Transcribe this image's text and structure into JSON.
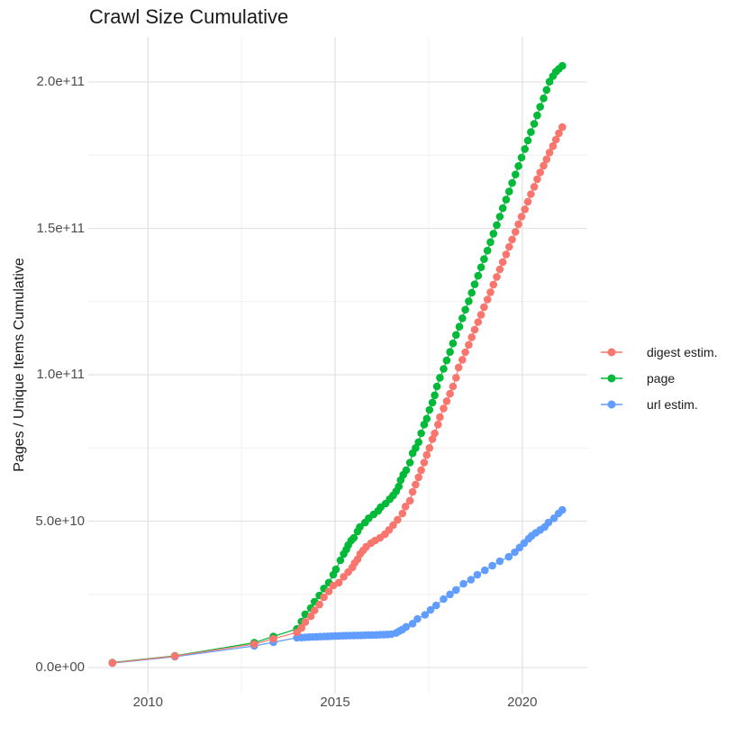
{
  "title": "Crawl Size Cumulative",
  "y_axis_title": "Pages / Unique Items Cumulative",
  "legend": {
    "position": "right",
    "items": [
      {
        "label": "digest estim.",
        "color": "#F8766D",
        "series": "digest estim."
      },
      {
        "label": "page",
        "color": "#00BA38",
        "series": "page"
      },
      {
        "label": "url estim.",
        "color": "#619CFF",
        "series": "url estim."
      }
    ]
  },
  "axes": {
    "x": {
      "ticks": [
        {
          "label": "2010",
          "value": 2010
        },
        {
          "label": "2015",
          "value": 2015
        },
        {
          "label": "2020",
          "value": 2020
        }
      ],
      "minor": [
        2012.5,
        2017.5
      ]
    },
    "y": {
      "ticks": [
        {
          "label": "0.0e+00",
          "value": 0
        },
        {
          "label": "5.0e+10",
          "value": 50
        },
        {
          "label": "1.0e+11",
          "value": 100
        },
        {
          "label": "1.5e+11",
          "value": 150
        },
        {
          "label": "2.0e+11",
          "value": 200
        }
      ],
      "minor": [
        25,
        75,
        125,
        175
      ]
    }
  },
  "colors": {
    "grid_major": "#E3E3E3",
    "grid_minor": "#EFEFEF",
    "background": "#FFFFFF"
  },
  "chart_data": {
    "type": "scatter",
    "title": "Crawl Size Cumulative",
    "xlabel": "",
    "ylabel": "Pages / Unique Items Cumulative",
    "x_unit": "year (decimal)",
    "y_unit": "items, billions (1e9)",
    "xlim": [
      2008.4,
      2021.7
    ],
    "ylim": [
      0,
      215
    ],
    "grid": true,
    "legend_position": "right",
    "marker_radius_px": 4.3,
    "series": [
      {
        "name": "digest estim.",
        "color": "#F8766D",
        "points": [
          [
            2009.05,
            1.6
          ],
          [
            2010.72,
            3.9
          ],
          [
            2012.84,
            8.0
          ],
          [
            2013.35,
            9.8
          ],
          [
            2013.98,
            12.0
          ],
          [
            2014.1,
            13.5
          ],
          [
            2014.2,
            15.5
          ],
          [
            2014.35,
            17.5
          ],
          [
            2014.45,
            19.5
          ],
          [
            2014.58,
            21.5
          ],
          [
            2014.7,
            24.0
          ],
          [
            2014.83,
            26.0
          ],
          [
            2014.95,
            28.0
          ],
          [
            2015.1,
            29.0
          ],
          [
            2015.23,
            31.0
          ],
          [
            2015.35,
            32.6
          ],
          [
            2015.46,
            34.2
          ],
          [
            2015.52,
            35.7
          ],
          [
            2015.6,
            37.0
          ],
          [
            2015.67,
            38.8
          ],
          [
            2015.75,
            40.0
          ],
          [
            2015.83,
            41.2
          ],
          [
            2015.96,
            42.5
          ],
          [
            2016.07,
            43.4
          ],
          [
            2016.2,
            44.3
          ],
          [
            2016.33,
            45.5
          ],
          [
            2016.44,
            47.0
          ],
          [
            2016.55,
            48.6
          ],
          [
            2016.67,
            50.5
          ],
          [
            2016.8,
            52.6
          ],
          [
            2016.88,
            55.0
          ],
          [
            2017.0,
            57.0
          ],
          [
            2017.07,
            60.0
          ],
          [
            2017.15,
            62.5
          ],
          [
            2017.23,
            65.0
          ],
          [
            2017.3,
            67.4
          ],
          [
            2017.38,
            70.0
          ],
          [
            2017.45,
            72.6
          ],
          [
            2017.52,
            75.0
          ],
          [
            2017.6,
            78.0
          ],
          [
            2017.66,
            80.0
          ],
          [
            2017.75,
            83.0
          ],
          [
            2017.8,
            85.5
          ],
          [
            2017.9,
            88.5
          ],
          [
            2017.98,
            91.0
          ],
          [
            2018.07,
            93.5
          ],
          [
            2018.15,
            96.0
          ],
          [
            2018.23,
            99.0
          ],
          [
            2018.3,
            102.5
          ],
          [
            2018.4,
            105.1
          ],
          [
            2018.48,
            107.7
          ],
          [
            2018.57,
            110.2
          ],
          [
            2018.65,
            112.8
          ],
          [
            2018.73,
            115.4
          ],
          [
            2018.82,
            118.0
          ],
          [
            2018.9,
            120.5
          ],
          [
            2018.98,
            123.1
          ],
          [
            2019.07,
            125.7
          ],
          [
            2019.15,
            128.2
          ],
          [
            2019.23,
            130.8
          ],
          [
            2019.32,
            133.4
          ],
          [
            2019.4,
            136.0
          ],
          [
            2019.48,
            138.5
          ],
          [
            2019.57,
            141.1
          ],
          [
            2019.65,
            143.7
          ],
          [
            2019.73,
            146.2
          ],
          [
            2019.82,
            148.8
          ],
          [
            2019.9,
            151.4
          ],
          [
            2019.98,
            154.0
          ],
          [
            2020.07,
            156.5
          ],
          [
            2020.15,
            159.1
          ],
          [
            2020.23,
            161.7
          ],
          [
            2020.32,
            164.2
          ],
          [
            2020.4,
            166.8
          ],
          [
            2020.48,
            169.1
          ],
          [
            2020.57,
            171.4
          ],
          [
            2020.65,
            173.6
          ],
          [
            2020.73,
            175.9
          ],
          [
            2020.82,
            178.1
          ],
          [
            2020.9,
            180.3
          ],
          [
            2020.98,
            182.5
          ],
          [
            2021.07,
            184.6
          ]
        ]
      },
      {
        "name": "page",
        "color": "#00BA38",
        "points": [
          [
            2009.05,
            1.7
          ],
          [
            2010.72,
            4.0
          ],
          [
            2012.84,
            8.5
          ],
          [
            2013.35,
            10.6
          ],
          [
            2013.98,
            13.2
          ],
          [
            2014.1,
            15.7
          ],
          [
            2014.2,
            18.2
          ],
          [
            2014.35,
            20.3
          ],
          [
            2014.45,
            22.5
          ],
          [
            2014.58,
            24.6
          ],
          [
            2014.7,
            27.0
          ],
          [
            2014.83,
            29.0
          ],
          [
            2014.95,
            31.7
          ],
          [
            2015.02,
            33.5
          ],
          [
            2015.14,
            36.6
          ],
          [
            2015.23,
            38.8
          ],
          [
            2015.3,
            40.3
          ],
          [
            2015.35,
            41.8
          ],
          [
            2015.43,
            43.4
          ],
          [
            2015.5,
            44.3
          ],
          [
            2015.6,
            46.5
          ],
          [
            2015.66,
            48.0
          ],
          [
            2015.8,
            49.5
          ],
          [
            2015.9,
            51.0
          ],
          [
            2016.03,
            52.3
          ],
          [
            2016.15,
            53.5
          ],
          [
            2016.22,
            54.8
          ],
          [
            2016.35,
            56.0
          ],
          [
            2016.46,
            57.5
          ],
          [
            2016.55,
            58.8
          ],
          [
            2016.63,
            60.2
          ],
          [
            2016.7,
            61.8
          ],
          [
            2016.75,
            64.0
          ],
          [
            2016.82,
            65.8
          ],
          [
            2016.9,
            67.4
          ],
          [
            2017.0,
            70.0
          ],
          [
            2017.07,
            73.2
          ],
          [
            2017.15,
            75.0
          ],
          [
            2017.23,
            77.0
          ],
          [
            2017.3,
            80.0
          ],
          [
            2017.38,
            83.0
          ],
          [
            2017.45,
            85.0
          ],
          [
            2017.52,
            88.0
          ],
          [
            2017.6,
            90.5
          ],
          [
            2017.66,
            93.0
          ],
          [
            2017.72,
            96.0
          ],
          [
            2017.8,
            99.0
          ],
          [
            2017.9,
            102.0
          ],
          [
            2017.98,
            104.9
          ],
          [
            2018.07,
            107.8
          ],
          [
            2018.15,
            110.7
          ],
          [
            2018.23,
            113.6
          ],
          [
            2018.32,
            116.4
          ],
          [
            2018.4,
            119.3
          ],
          [
            2018.48,
            122.2
          ],
          [
            2018.57,
            125.1
          ],
          [
            2018.65,
            128.0
          ],
          [
            2018.73,
            130.9
          ],
          [
            2018.82,
            133.8
          ],
          [
            2018.9,
            136.7
          ],
          [
            2018.98,
            139.5
          ],
          [
            2019.07,
            142.4
          ],
          [
            2019.15,
            145.3
          ],
          [
            2019.23,
            148.2
          ],
          [
            2019.32,
            151.1
          ],
          [
            2019.4,
            154.0
          ],
          [
            2019.48,
            156.9
          ],
          [
            2019.57,
            159.8
          ],
          [
            2019.65,
            162.6
          ],
          [
            2019.73,
            165.5
          ],
          [
            2019.82,
            168.4
          ],
          [
            2019.9,
            171.3
          ],
          [
            2019.98,
            174.2
          ],
          [
            2020.07,
            177.1
          ],
          [
            2020.15,
            180.0
          ],
          [
            2020.23,
            182.9
          ],
          [
            2020.32,
            185.7
          ],
          [
            2020.4,
            188.6
          ],
          [
            2020.48,
            191.5
          ],
          [
            2020.57,
            194.4
          ],
          [
            2020.65,
            197.3
          ],
          [
            2020.73,
            200.1
          ],
          [
            2020.82,
            202.0
          ],
          [
            2020.9,
            203.5
          ],
          [
            2020.98,
            204.5
          ],
          [
            2021.07,
            205.5
          ]
        ]
      },
      {
        "name": "url estim.",
        "color": "#619CFF",
        "points": [
          [
            2009.05,
            1.5
          ],
          [
            2010.72,
            3.7
          ],
          [
            2012.84,
            7.4
          ],
          [
            2013.35,
            8.6
          ],
          [
            2013.98,
            10.2
          ],
          [
            2014.1,
            10.25
          ],
          [
            2014.2,
            10.3
          ],
          [
            2014.3,
            10.4
          ],
          [
            2014.4,
            10.45
          ],
          [
            2014.5,
            10.5
          ],
          [
            2014.6,
            10.55
          ],
          [
            2014.7,
            10.6
          ],
          [
            2014.8,
            10.65
          ],
          [
            2014.9,
            10.7
          ],
          [
            2015.0,
            10.75
          ],
          [
            2015.1,
            10.8
          ],
          [
            2015.2,
            10.85
          ],
          [
            2015.3,
            10.9
          ],
          [
            2015.4,
            10.92
          ],
          [
            2015.5,
            10.95
          ],
          [
            2015.6,
            11.0
          ],
          [
            2015.7,
            11.0
          ],
          [
            2015.8,
            11.05
          ],
          [
            2015.9,
            11.1
          ],
          [
            2016.0,
            11.1
          ],
          [
            2016.1,
            11.15
          ],
          [
            2016.2,
            11.2
          ],
          [
            2016.3,
            11.25
          ],
          [
            2016.4,
            11.3
          ],
          [
            2016.5,
            11.4
          ],
          [
            2016.63,
            11.8
          ],
          [
            2016.72,
            12.5
          ],
          [
            2016.8,
            13.0
          ],
          [
            2016.9,
            13.9
          ],
          [
            2017.07,
            15.0
          ],
          [
            2017.2,
            16.6
          ],
          [
            2017.4,
            18.0
          ],
          [
            2017.55,
            19.7
          ],
          [
            2017.7,
            21.2
          ],
          [
            2017.9,
            23.4
          ],
          [
            2018.07,
            25.0
          ],
          [
            2018.23,
            26.5
          ],
          [
            2018.43,
            28.6
          ],
          [
            2018.63,
            30.0
          ],
          [
            2018.8,
            31.7
          ],
          [
            2019.0,
            33.2
          ],
          [
            2019.2,
            34.8
          ],
          [
            2019.4,
            36.3
          ],
          [
            2019.64,
            37.8
          ],
          [
            2019.8,
            39.4
          ],
          [
            2019.93,
            41.0
          ],
          [
            2020.05,
            42.5
          ],
          [
            2020.17,
            44.0
          ],
          [
            2020.25,
            45.0
          ],
          [
            2020.36,
            46.0
          ],
          [
            2020.48,
            47.0
          ],
          [
            2020.6,
            48.0
          ],
          [
            2020.7,
            49.5
          ],
          [
            2020.85,
            51.0
          ],
          [
            2020.97,
            52.6
          ],
          [
            2021.07,
            53.8
          ]
        ]
      }
    ]
  }
}
